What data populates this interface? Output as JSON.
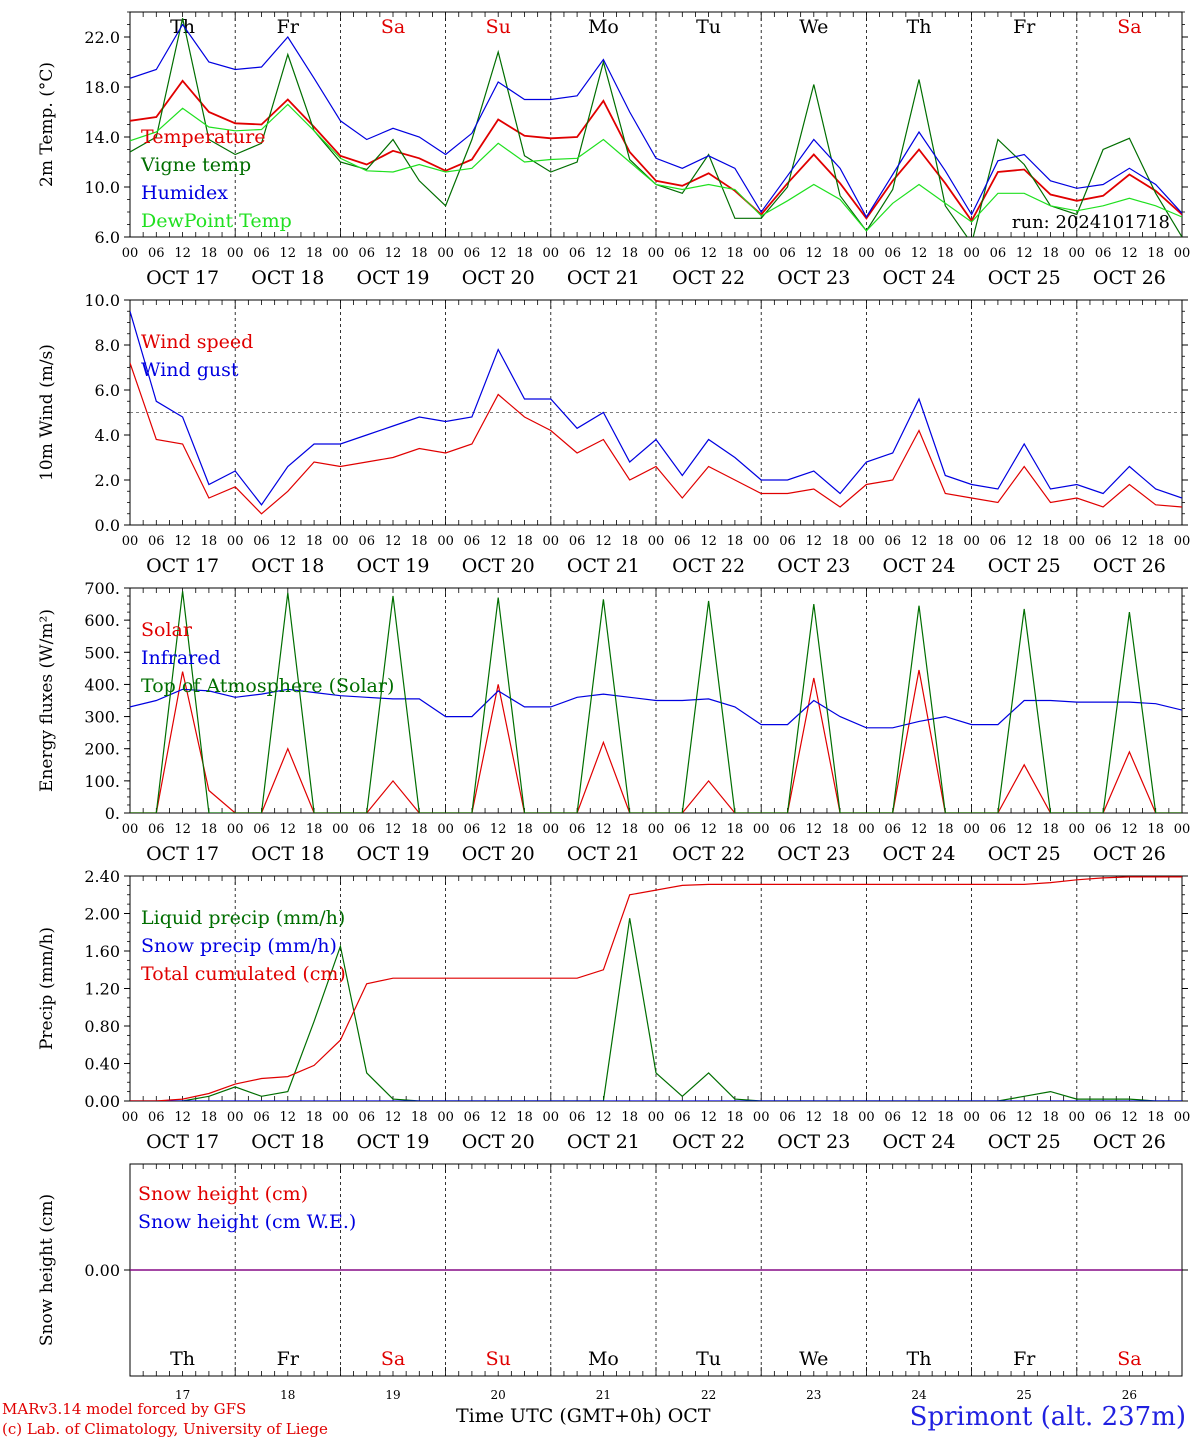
{
  "colors": {
    "red": "#e00000",
    "green": "#006e00",
    "blue": "#0000e0",
    "light_green": "#20e020",
    "purple": "#800080",
    "weekend": "#e00000",
    "weekday": "#000000"
  },
  "days": [
    {
      "dow": "Th",
      "date": "OCT 17",
      "num": "17",
      "weekend": false
    },
    {
      "dow": "Fr",
      "date": "OCT 18",
      "num": "18",
      "weekend": false
    },
    {
      "dow": "Sa",
      "date": "OCT 19",
      "num": "19",
      "weekend": true
    },
    {
      "dow": "Su",
      "date": "OCT 20",
      "num": "20",
      "weekend": true
    },
    {
      "dow": "Mo",
      "date": "OCT 21",
      "num": "21",
      "weekend": false
    },
    {
      "dow": "Tu",
      "date": "OCT 22",
      "num": "22",
      "weekend": false
    },
    {
      "dow": "We",
      "date": "OCT 23",
      "num": "23",
      "weekend": false
    },
    {
      "dow": "Th",
      "date": "OCT 24",
      "num": "24",
      "weekend": false
    },
    {
      "dow": "Fr",
      "date": "OCT 25",
      "num": "25",
      "weekend": false
    },
    {
      "dow": "Sa",
      "date": "OCT 26",
      "num": "26",
      "weekend": true
    }
  ],
  "hour_ticks": [
    "00",
    "06",
    "12",
    "18"
  ],
  "final_hour_tick": "00",
  "footer": {
    "credit_line1": "MARv3.14 model forced by GFS",
    "credit_line2": "(c) Lab. of Climatology, University of Liege",
    "xlabel": "Time UTC (GMT+0h) OCT",
    "station": "Sprimont (alt. 237m)"
  },
  "chart_data": [
    {
      "type": "line",
      "ylabel": "2m Temp. (°C)",
      "ylim": [
        6.0,
        24.0
      ],
      "yticks": [
        "6.0",
        "10.0",
        "14.0",
        "18.0",
        "22.0"
      ],
      "annotation": "run: 2024101718",
      "x_hours": [
        0,
        6,
        12,
        18,
        24,
        30,
        36,
        42,
        48,
        54,
        60,
        66,
        72,
        78,
        84,
        90,
        96,
        102,
        108,
        114,
        120,
        126,
        132,
        138,
        144,
        150,
        156,
        162,
        168,
        174,
        180,
        186,
        192,
        198,
        204,
        210,
        216,
        222,
        228,
        234,
        240
      ],
      "series": [
        {
          "name": "Temperature",
          "color_key": "red",
          "values": [
            15.3,
            15.6,
            18.5,
            16.0,
            15.1,
            15.0,
            17.0,
            14.8,
            12.5,
            11.8,
            12.9,
            12.3,
            11.3,
            12.2,
            15.4,
            14.1,
            13.9,
            14.0,
            16.9,
            12.8,
            10.5,
            10.1,
            11.1,
            9.7,
            7.8,
            10.3,
            12.6,
            10.3,
            7.5,
            10.5,
            13.0,
            10.3,
            7.3,
            11.2,
            11.4,
            9.4,
            8.9,
            9.3,
            11.0,
            9.7,
            7.8
          ]
        },
        {
          "name": "Vigne temp",
          "color_key": "green",
          "values": [
            12.8,
            14.0,
            23.5,
            13.8,
            12.6,
            13.5,
            20.6,
            14.5,
            12.0,
            11.4,
            13.8,
            10.5,
            8.5,
            13.8,
            20.8,
            12.5,
            11.2,
            12.0,
            20.0,
            12.2,
            10.2,
            9.5,
            12.6,
            7.5,
            7.5,
            10.0,
            18.2,
            9.3,
            6.5,
            9.8,
            18.6,
            8.5,
            5.5,
            13.8,
            11.8,
            8.5,
            7.8,
            13.0,
            13.9,
            9.5,
            6.0
          ]
        },
        {
          "name": "Humidex",
          "color_key": "blue",
          "values": [
            18.7,
            19.4,
            23.0,
            20.0,
            19.4,
            19.6,
            22.0,
            18.7,
            15.3,
            13.8,
            14.7,
            14.0,
            12.6,
            14.3,
            18.4,
            17.0,
            17.0,
            17.3,
            20.2,
            16.0,
            12.3,
            11.5,
            12.5,
            11.5,
            8.0,
            10.9,
            13.8,
            11.5,
            7.6,
            11.0,
            14.4,
            11.3,
            7.8,
            12.1,
            12.6,
            10.5,
            9.9,
            10.2,
            11.5,
            10.2,
            7.9
          ]
        },
        {
          "name": "DewPoint Temp",
          "color_key": "light_green",
          "values": [
            13.7,
            14.4,
            16.3,
            14.8,
            14.5,
            14.6,
            16.6,
            14.5,
            12.3,
            11.3,
            11.2,
            11.8,
            11.2,
            11.5,
            13.5,
            12.0,
            12.2,
            12.3,
            13.8,
            12.0,
            10.2,
            9.8,
            10.2,
            9.8,
            7.7,
            8.9,
            10.2,
            9.0,
            6.5,
            8.7,
            10.2,
            8.7,
            7.2,
            9.5,
            9.5,
            8.5,
            8.1,
            8.5,
            9.1,
            8.5,
            7.6
          ]
        }
      ]
    },
    {
      "type": "line",
      "ylabel": "10m Wind (m/s)",
      "ylim": [
        0.0,
        10.0
      ],
      "yticks": [
        "0.0",
        "2.0",
        "4.0",
        "6.0",
        "8.0",
        "10.0"
      ],
      "reference_line": 5.0,
      "x_hours": [
        0,
        6,
        12,
        18,
        24,
        30,
        36,
        42,
        48,
        54,
        60,
        66,
        72,
        78,
        84,
        90,
        96,
        102,
        108,
        114,
        120,
        126,
        132,
        138,
        144,
        150,
        156,
        162,
        168,
        174,
        180,
        186,
        192,
        198,
        204,
        210,
        216,
        222,
        228,
        234,
        240
      ],
      "series": [
        {
          "name": "Wind speed",
          "color_key": "red",
          "values": [
            7.2,
            3.8,
            3.6,
            1.2,
            1.7,
            0.5,
            1.5,
            2.8,
            2.6,
            2.8,
            3.0,
            3.4,
            3.2,
            3.6,
            5.8,
            4.8,
            4.2,
            3.2,
            3.8,
            2.0,
            2.6,
            1.2,
            2.6,
            2.0,
            1.4,
            1.4,
            1.6,
            0.8,
            1.8,
            2.0,
            4.2,
            1.4,
            1.2,
            1.0,
            2.6,
            1.0,
            1.2,
            0.8,
            1.8,
            0.9,
            0.8
          ]
        },
        {
          "name": "Wind gust",
          "color_key": "blue",
          "values": [
            9.5,
            5.5,
            4.8,
            1.8,
            2.4,
            0.9,
            2.6,
            3.6,
            3.6,
            4.0,
            4.4,
            4.8,
            4.6,
            4.8,
            7.8,
            5.6,
            5.6,
            4.3,
            5.0,
            2.8,
            3.8,
            2.2,
            3.8,
            3.0,
            2.0,
            2.0,
            2.4,
            1.4,
            2.8,
            3.2,
            5.6,
            2.2,
            1.8,
            1.6,
            3.6,
            1.6,
            1.8,
            1.4,
            2.6,
            1.6,
            1.2
          ]
        }
      ]
    },
    {
      "type": "line",
      "ylabel": "Energy fluxes (W/m²)",
      "ylim": [
        0,
        700
      ],
      "yticks": [
        "0.",
        "100.",
        "200.",
        "300.",
        "400.",
        "500.",
        "600.",
        "700."
      ],
      "x_hours": [
        0,
        6,
        12,
        18,
        24,
        30,
        36,
        42,
        48,
        54,
        60,
        66,
        72,
        78,
        84,
        90,
        96,
        102,
        108,
        114,
        120,
        126,
        132,
        138,
        144,
        150,
        156,
        162,
        168,
        174,
        180,
        186,
        192,
        198,
        204,
        210,
        216,
        222,
        228,
        234,
        240
      ],
      "series": [
        {
          "name": "Solar",
          "color_key": "red",
          "values": [
            0,
            0,
            440,
            70,
            0,
            0,
            200,
            0,
            0,
            0,
            100,
            0,
            0,
            0,
            400,
            0,
            0,
            0,
            220,
            0,
            0,
            0,
            100,
            0,
            0,
            0,
            420,
            0,
            0,
            0,
            445,
            0,
            0,
            0,
            150,
            0,
            0,
            0,
            190,
            0,
            0
          ]
        },
        {
          "name": "Infrared",
          "color_key": "blue",
          "values": [
            330,
            350,
            385,
            380,
            360,
            370,
            385,
            375,
            365,
            360,
            355,
            355,
            300,
            300,
            380,
            330,
            330,
            360,
            370,
            360,
            350,
            350,
            355,
            330,
            275,
            275,
            350,
            300,
            265,
            265,
            285,
            300,
            275,
            275,
            350,
            350,
            345,
            345,
            345,
            340,
            320
          ]
        },
        {
          "name": "Top of Atmosphere (Solar)",
          "color_key": "green",
          "values": [
            0,
            0,
            690,
            0,
            0,
            0,
            685,
            0,
            0,
            0,
            675,
            0,
            0,
            0,
            670,
            0,
            0,
            0,
            665,
            0,
            0,
            0,
            660,
            0,
            0,
            0,
            650,
            0,
            0,
            0,
            645,
            0,
            0,
            0,
            635,
            0,
            0,
            0,
            625,
            0,
            0
          ]
        }
      ]
    },
    {
      "type": "line",
      "ylabel": "Precip (mm/h)",
      "ylim": [
        0.0,
        2.4
      ],
      "yticks": [
        "0.00",
        "0.40",
        "0.80",
        "1.20",
        "1.60",
        "2.00",
        "2.40"
      ],
      "x_hours": [
        0,
        6,
        12,
        18,
        24,
        30,
        36,
        42,
        48,
        54,
        60,
        66,
        72,
        78,
        84,
        90,
        96,
        102,
        108,
        114,
        120,
        126,
        132,
        138,
        144,
        150,
        156,
        162,
        168,
        174,
        180,
        186,
        192,
        198,
        204,
        210,
        216,
        222,
        228,
        234,
        240
      ],
      "series": [
        {
          "name": "Liquid precip (mm/h)",
          "color_key": "green",
          "values": [
            0,
            0,
            0,
            0.05,
            0.15,
            0.05,
            0.1,
            0.85,
            1.65,
            0.3,
            0.02,
            0,
            0,
            0,
            0,
            0,
            0,
            0,
            0,
            1.95,
            0.3,
            0.05,
            0.3,
            0.02,
            0,
            0,
            0,
            0,
            0,
            0,
            0,
            0,
            0,
            0,
            0.05,
            0.1,
            0.02,
            0.02,
            0.02,
            0,
            0
          ]
        },
        {
          "name": "Snow precip (mm/h)",
          "color_key": "blue",
          "values": [
            0,
            0,
            0,
            0,
            0,
            0,
            0,
            0,
            0,
            0,
            0,
            0,
            0,
            0,
            0,
            0,
            0,
            0,
            0,
            0,
            0,
            0,
            0,
            0,
            0,
            0,
            0,
            0,
            0,
            0,
            0,
            0,
            0,
            0,
            0,
            0,
            0,
            0,
            0,
            0,
            0
          ]
        },
        {
          "name": "Total cumulated (cm)",
          "color_key": "red",
          "values": [
            0,
            0,
            0.02,
            0.08,
            0.18,
            0.24,
            0.26,
            0.38,
            0.65,
            1.25,
            1.31,
            1.31,
            1.31,
            1.31,
            1.31,
            1.31,
            1.31,
            1.31,
            1.4,
            2.2,
            2.25,
            2.3,
            2.31,
            2.31,
            2.31,
            2.31,
            2.31,
            2.31,
            2.31,
            2.31,
            2.31,
            2.31,
            2.31,
            2.31,
            2.31,
            2.33,
            2.36,
            2.38,
            2.39,
            2.39,
            2.39
          ]
        }
      ]
    },
    {
      "type": "line",
      "ylabel": "Snow height (cm)",
      "ylim": [
        -1.0,
        1.0
      ],
      "yticks": [
        "0.00"
      ],
      "x_hours": [
        0,
        240
      ],
      "series": [
        {
          "name": "Snow height (cm)",
          "color_key": "red",
          "values": [
            0.0,
            0.0
          ]
        },
        {
          "name": "Snow height (cm W.E.)",
          "color_key": "blue",
          "values": [
            0.0,
            0.0
          ]
        }
      ]
    }
  ]
}
